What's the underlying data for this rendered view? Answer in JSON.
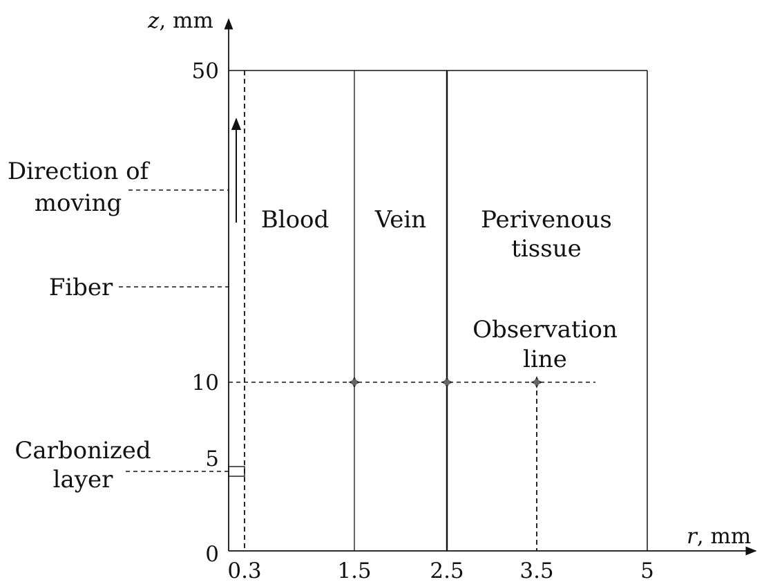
{
  "axes": {
    "z_label_var": "z",
    "z_label_unit": ", mm",
    "r_label_var": "r",
    "r_label_unit": ", mm",
    "z_ticks": [
      "50",
      "10",
      "5",
      "0"
    ],
    "r_ticks": [
      "0.3",
      "1.5",
      "2.5",
      "3.5",
      "5"
    ]
  },
  "regions": {
    "blood": "Blood",
    "vein": "Vein",
    "perivenous_line1": "Perivenous",
    "perivenous_line2": "tissue"
  },
  "annotations": {
    "direction_line1": "Direction of",
    "direction_line2": "moving",
    "fiber": "Fiber",
    "carbonized_line1": "Carbonized",
    "carbonized_line2": "layer",
    "observation_line1": "Observation",
    "observation_line2": "line"
  },
  "colors": {
    "ink": "#111111",
    "marker": "#666666"
  }
}
